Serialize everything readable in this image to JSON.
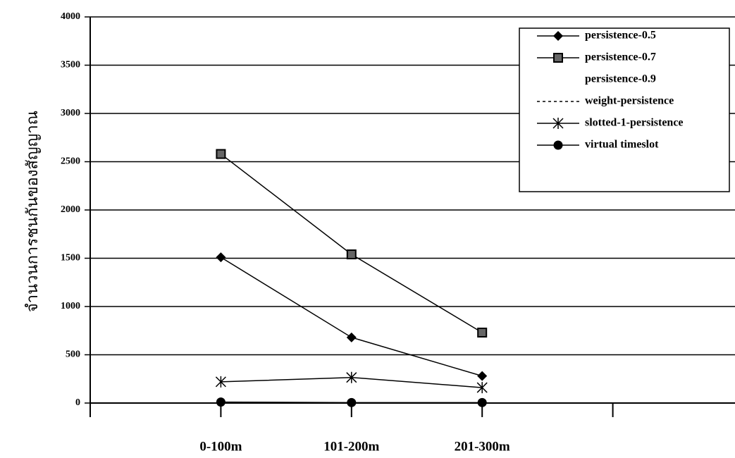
{
  "chart_data": {
    "type": "line",
    "y_label": "จำนวนการชนกันของสัญญาณ",
    "categories": [
      null,
      "0-100m",
      "101-200m",
      "201-300m",
      null,
      null
    ],
    "series": [
      {
        "name": "persistence-0.5",
        "color": "#000000",
        "marker": "diamond",
        "line_style": "solid",
        "values": [
          null,
          1510,
          680,
          280,
          null,
          null
        ]
      },
      {
        "name": "persistence-0.7",
        "color": "#000000",
        "marker": "square",
        "line_style": "solid",
        "values": [
          null,
          2580,
          1540,
          730,
          null,
          null
        ]
      },
      {
        "name": "persistence-0.9",
        "color": "#000000",
        "marker": "none",
        "line_style": "none",
        "values": [
          null,
          null,
          null,
          null,
          null,
          null
        ]
      },
      {
        "name": "weight-persistence",
        "color": "#000000",
        "marker": "none",
        "line_style": "dashed",
        "values": [
          null,
          null,
          null,
          null,
          null,
          null
        ]
      },
      {
        "name": "slotted-1-persistence",
        "color": "#000000",
        "marker": "asterisk",
        "line_style": "solid",
        "values": [
          null,
          220,
          265,
          160,
          null,
          null
        ]
      },
      {
        "name": "virtual timeslot",
        "color": "#000000",
        "marker": "circle",
        "line_style": "solid",
        "values": [
          null,
          10,
          5,
          5,
          null,
          null
        ]
      }
    ],
    "ylim": [
      0,
      4000
    ],
    "yticks": [
      0,
      500,
      1000,
      1500,
      2000,
      2500,
      3000,
      3500,
      4000
    ],
    "grid": true,
    "legend": "top-right"
  }
}
